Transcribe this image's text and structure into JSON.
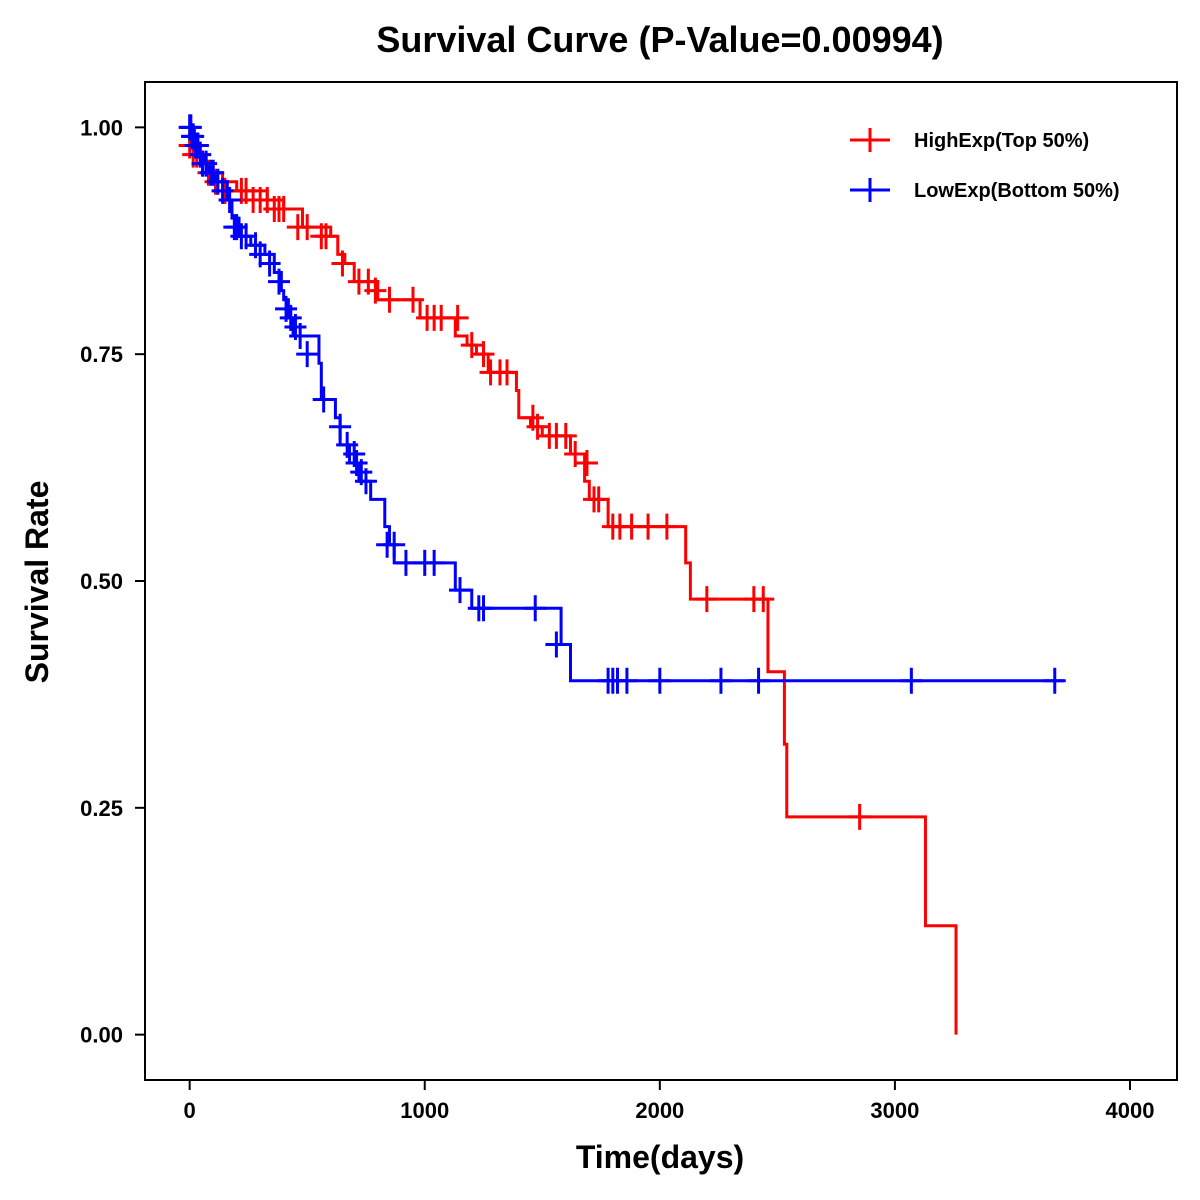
{
  "chart_data": {
    "type": "line",
    "title": "Survival Curve (P-Value=0.00994)",
    "xlabel": "Time(days)",
    "ylabel": "Survival Rate",
    "xlim": [
      -190,
      4200
    ],
    "ylim": [
      -0.05,
      1.05
    ],
    "xticks": [
      0,
      1000,
      2000,
      3000,
      4000
    ],
    "yticks": [
      0.0,
      0.25,
      0.5,
      0.75,
      1.0
    ],
    "xtick_labels": [
      "0",
      "1000",
      "2000",
      "3000",
      "4000"
    ],
    "ytick_labels": [
      "0.00",
      "0.25",
      "0.50",
      "0.75",
      "1.00"
    ],
    "grid": false,
    "legend_position": "top-right",
    "series": [
      {
        "name": "HighExp(Top 50%)",
        "color": "#ff0000",
        "steps": [
          [
            0,
            0.99
          ],
          [
            20,
            0.98
          ],
          [
            45,
            0.97
          ],
          [
            70,
            0.96
          ],
          [
            100,
            0.95
          ],
          [
            140,
            0.94
          ],
          [
            200,
            0.93
          ],
          [
            330,
            0.92
          ],
          [
            400,
            0.91
          ],
          [
            480,
            0.89
          ],
          [
            600,
            0.88
          ],
          [
            630,
            0.86
          ],
          [
            660,
            0.85
          ],
          [
            700,
            0.83
          ],
          [
            800,
            0.81
          ],
          [
            980,
            0.79
          ],
          [
            1130,
            0.77
          ],
          [
            1180,
            0.76
          ],
          [
            1220,
            0.75
          ],
          [
            1270,
            0.73
          ],
          [
            1390,
            0.71
          ],
          [
            1400,
            0.68
          ],
          [
            1450,
            0.67
          ],
          [
            1500,
            0.66
          ],
          [
            1620,
            0.64
          ],
          [
            1680,
            0.61
          ],
          [
            1700,
            0.59
          ],
          [
            1780,
            0.56
          ],
          [
            2110,
            0.52
          ],
          [
            2130,
            0.48
          ],
          [
            2460,
            0.4
          ],
          [
            2530,
            0.32
          ],
          [
            2540,
            0.24
          ],
          [
            3130,
            0.12
          ],
          [
            3260,
            0.0
          ]
        ],
        "end": 3260,
        "censor": [
          [
            0,
            0.98
          ],
          [
            15,
            0.97
          ],
          [
            30,
            0.97
          ],
          [
            55,
            0.96
          ],
          [
            80,
            0.95
          ],
          [
            110,
            0.94
          ],
          [
            150,
            0.93
          ],
          [
            220,
            0.93
          ],
          [
            240,
            0.93
          ],
          [
            270,
            0.92
          ],
          [
            300,
            0.92
          ],
          [
            330,
            0.92
          ],
          [
            360,
            0.91
          ],
          [
            380,
            0.91
          ],
          [
            400,
            0.91
          ],
          [
            460,
            0.89
          ],
          [
            500,
            0.89
          ],
          [
            560,
            0.88
          ],
          [
            580,
            0.88
          ],
          [
            650,
            0.85
          ],
          [
            720,
            0.83
          ],
          [
            760,
            0.83
          ],
          [
            790,
            0.82
          ],
          [
            850,
            0.81
          ],
          [
            950,
            0.81
          ],
          [
            1010,
            0.79
          ],
          [
            1040,
            0.79
          ],
          [
            1070,
            0.79
          ],
          [
            1140,
            0.79
          ],
          [
            1200,
            0.76
          ],
          [
            1250,
            0.75
          ],
          [
            1280,
            0.73
          ],
          [
            1320,
            0.73
          ],
          [
            1350,
            0.73
          ],
          [
            1460,
            0.68
          ],
          [
            1480,
            0.67
          ],
          [
            1530,
            0.66
          ],
          [
            1560,
            0.66
          ],
          [
            1600,
            0.66
          ],
          [
            1640,
            0.64
          ],
          [
            1690,
            0.63
          ],
          [
            1720,
            0.59
          ],
          [
            1740,
            0.59
          ],
          [
            1800,
            0.56
          ],
          [
            1830,
            0.56
          ],
          [
            1880,
            0.56
          ],
          [
            1950,
            0.56
          ],
          [
            2030,
            0.56
          ],
          [
            2200,
            0.48
          ],
          [
            2400,
            0.48
          ],
          [
            2440,
            0.48
          ],
          [
            2850,
            0.24
          ]
        ]
      },
      {
        "name": "LowExp(Bottom 50%)",
        "color": "#0000ff",
        "steps": [
          [
            0,
            1.0
          ],
          [
            20,
            0.99
          ],
          [
            30,
            0.98
          ],
          [
            40,
            0.97
          ],
          [
            60,
            0.96
          ],
          [
            80,
            0.95
          ],
          [
            110,
            0.94
          ],
          [
            160,
            0.92
          ],
          [
            180,
            0.9
          ],
          [
            210,
            0.88
          ],
          [
            260,
            0.87
          ],
          [
            320,
            0.86
          ],
          [
            360,
            0.84
          ],
          [
            390,
            0.82
          ],
          [
            400,
            0.81
          ],
          [
            420,
            0.79
          ],
          [
            440,
            0.77
          ],
          [
            550,
            0.74
          ],
          [
            560,
            0.7
          ],
          [
            620,
            0.68
          ],
          [
            640,
            0.65
          ],
          [
            680,
            0.63
          ],
          [
            720,
            0.61
          ],
          [
            770,
            0.59
          ],
          [
            830,
            0.56
          ],
          [
            850,
            0.54
          ],
          [
            870,
            0.52
          ],
          [
            1130,
            0.49
          ],
          [
            1200,
            0.47
          ],
          [
            1580,
            0.43
          ],
          [
            1620,
            0.39
          ]
        ],
        "end": 3720,
        "censor": [
          [
            0,
            1.0
          ],
          [
            5,
            1.0
          ],
          [
            10,
            0.99
          ],
          [
            15,
            0.99
          ],
          [
            25,
            0.98
          ],
          [
            35,
            0.98
          ],
          [
            45,
            0.97
          ],
          [
            55,
            0.96
          ],
          [
            70,
            0.96
          ],
          [
            90,
            0.95
          ],
          [
            100,
            0.95
          ],
          [
            120,
            0.94
          ],
          [
            140,
            0.93
          ],
          [
            170,
            0.92
          ],
          [
            190,
            0.89
          ],
          [
            200,
            0.89
          ],
          [
            220,
            0.88
          ],
          [
            240,
            0.88
          ],
          [
            280,
            0.87
          ],
          [
            300,
            0.86
          ],
          [
            340,
            0.85
          ],
          [
            380,
            0.83
          ],
          [
            410,
            0.8
          ],
          [
            430,
            0.79
          ],
          [
            450,
            0.78
          ],
          [
            470,
            0.77
          ],
          [
            500,
            0.75
          ],
          [
            570,
            0.7
          ],
          [
            640,
            0.67
          ],
          [
            670,
            0.65
          ],
          [
            700,
            0.64
          ],
          [
            710,
            0.63
          ],
          [
            730,
            0.62
          ],
          [
            750,
            0.61
          ],
          [
            840,
            0.54
          ],
          [
            870,
            0.54
          ],
          [
            920,
            0.52
          ],
          [
            1000,
            0.52
          ],
          [
            1040,
            0.52
          ],
          [
            1150,
            0.49
          ],
          [
            1230,
            0.47
          ],
          [
            1250,
            0.47
          ],
          [
            1470,
            0.47
          ],
          [
            1560,
            0.43
          ],
          [
            1780,
            0.39
          ],
          [
            1800,
            0.39
          ],
          [
            1820,
            0.39
          ],
          [
            1860,
            0.39
          ],
          [
            2000,
            0.39
          ],
          [
            2260,
            0.39
          ],
          [
            2420,
            0.39
          ],
          [
            3070,
            0.39
          ],
          [
            3680,
            0.39
          ]
        ]
      }
    ]
  }
}
